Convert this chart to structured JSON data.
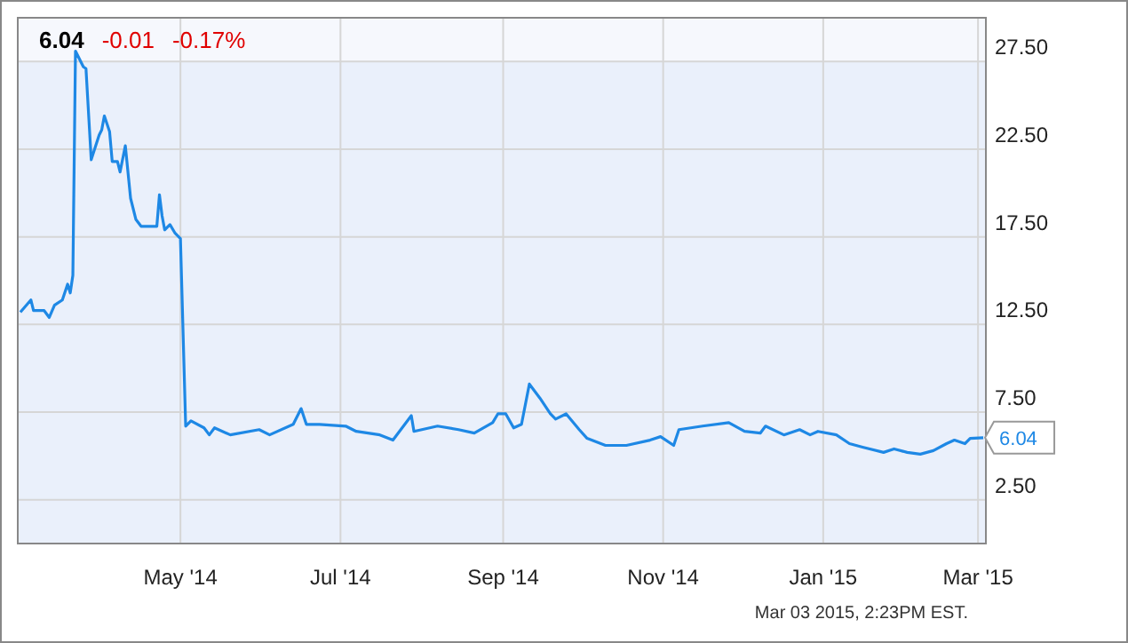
{
  "chart_data": {
    "type": "line",
    "x": [
      "2014-03-01",
      "2014-03-05",
      "2014-03-06",
      "2014-03-10",
      "2014-03-12",
      "2014-03-14",
      "2014-03-17",
      "2014-03-19",
      "2014-03-20",
      "2014-03-21",
      "2014-03-22",
      "2014-03-25",
      "2014-03-26",
      "2014-03-28",
      "2014-03-31",
      "2014-04-01",
      "2014-04-02",
      "2014-04-04",
      "2014-04-05",
      "2014-04-07",
      "2014-04-08",
      "2014-04-10",
      "2014-04-12",
      "2014-04-14",
      "2014-04-16",
      "2014-04-22",
      "2014-04-23",
      "2014-04-24",
      "2014-04-25",
      "2014-04-27",
      "2014-04-29",
      "2014-05-01",
      "2014-05-03",
      "2014-05-05",
      "2014-05-10",
      "2014-05-12",
      "2014-05-14",
      "2014-05-20",
      "2014-05-31",
      "2014-06-04",
      "2014-06-13",
      "2014-06-16",
      "2014-06-18",
      "2014-06-23",
      "2014-07-03",
      "2014-07-07",
      "2014-07-16",
      "2014-07-21",
      "2014-07-28",
      "2014-07-29",
      "2014-08-07",
      "2014-08-15",
      "2014-08-21",
      "2014-08-28",
      "2014-08-30",
      "2014-09-02",
      "2014-09-05",
      "2014-09-08",
      "2014-09-11",
      "2014-09-15",
      "2014-09-19",
      "2014-09-21",
      "2014-09-25",
      "2014-09-30",
      "2014-10-03",
      "2014-10-10",
      "2014-10-18",
      "2014-10-27",
      "2014-10-31",
      "2014-11-05",
      "2014-11-07",
      "2014-11-16",
      "2014-11-26",
      "2014-12-02",
      "2014-12-08",
      "2014-12-10",
      "2014-12-17",
      "2014-12-23",
      "2014-12-27",
      "2014-12-30",
      "2015-01-06",
      "2015-01-11",
      "2015-01-16",
      "2015-01-24",
      "2015-01-28",
      "2015-02-02",
      "2015-02-07",
      "2015-02-12",
      "2015-02-17",
      "2015-02-20",
      "2015-02-24",
      "2015-02-26",
      "2015-03-03"
    ],
    "series": [
      {
        "color": "#1e88e5",
        "values": [
          13.2,
          13.9,
          13.3,
          13.3,
          12.9,
          13.6,
          13.9,
          14.8,
          14.3,
          15.3,
          28.1,
          27.2,
          27.1,
          21.9,
          23.3,
          23.6,
          24.4,
          23.5,
          21.8,
          21.8,
          21.2,
          22.7,
          19.7,
          18.5,
          18.1,
          18.1,
          19.9,
          18.7,
          17.9,
          18.2,
          17.7,
          17.4,
          6.7,
          7.0,
          6.6,
          6.2,
          6.6,
          6.2,
          6.5,
          6.2,
          6.8,
          7.7,
          6.8,
          6.8,
          6.7,
          6.4,
          6.2,
          5.9,
          7.3,
          6.4,
          6.7,
          6.5,
          6.3,
          6.9,
          7.4,
          7.4,
          6.6,
          6.8,
          9.1,
          8.3,
          7.4,
          7.1,
          7.4,
          6.5,
          6.0,
          5.6,
          5.6,
          5.9,
          6.1,
          5.6,
          6.5,
          6.7,
          6.9,
          6.4,
          6.3,
          6.7,
          6.2,
          6.5,
          6.2,
          6.4,
          6.2,
          5.7,
          5.5,
          5.2,
          5.4,
          5.2,
          5.1,
          5.3,
          5.7,
          5.9,
          5.7,
          6.0,
          6.04
        ]
      }
    ],
    "xlim": [
      "2014-02-28",
      "2015-03-04"
    ],
    "xticks": [
      {
        "value": "2014-05-01",
        "label": "May '14"
      },
      {
        "value": "2014-07-01",
        "label": "Jul '14"
      },
      {
        "value": "2014-09-01",
        "label": "Sep '14"
      },
      {
        "value": "2014-11-01",
        "label": "Nov '14"
      },
      {
        "value": "2015-01-01",
        "label": "Jan '15"
      },
      {
        "value": "2015-03-01",
        "label": "Mar '15"
      }
    ],
    "ylim": [
      0,
      30
    ],
    "yticks": [
      {
        "value": 2.5,
        "label": "2.50"
      },
      {
        "value": 7.5,
        "label": "7.50"
      },
      {
        "value": 12.5,
        "label": "12.50"
      },
      {
        "value": 17.5,
        "label": "17.50"
      },
      {
        "value": 22.5,
        "label": "22.50"
      },
      {
        "value": 27.5,
        "label": "27.50"
      }
    ],
    "grid": true,
    "marker": "none",
    "line_style": "solid",
    "annotations": [
      "6.04",
      "-0.01",
      "-0.17%",
      {
        "text": "6.04",
        "x": "2015-03-03",
        "y": 6.04
      },
      "Mar 03 2015, 2:23PM EST."
    ]
  }
}
